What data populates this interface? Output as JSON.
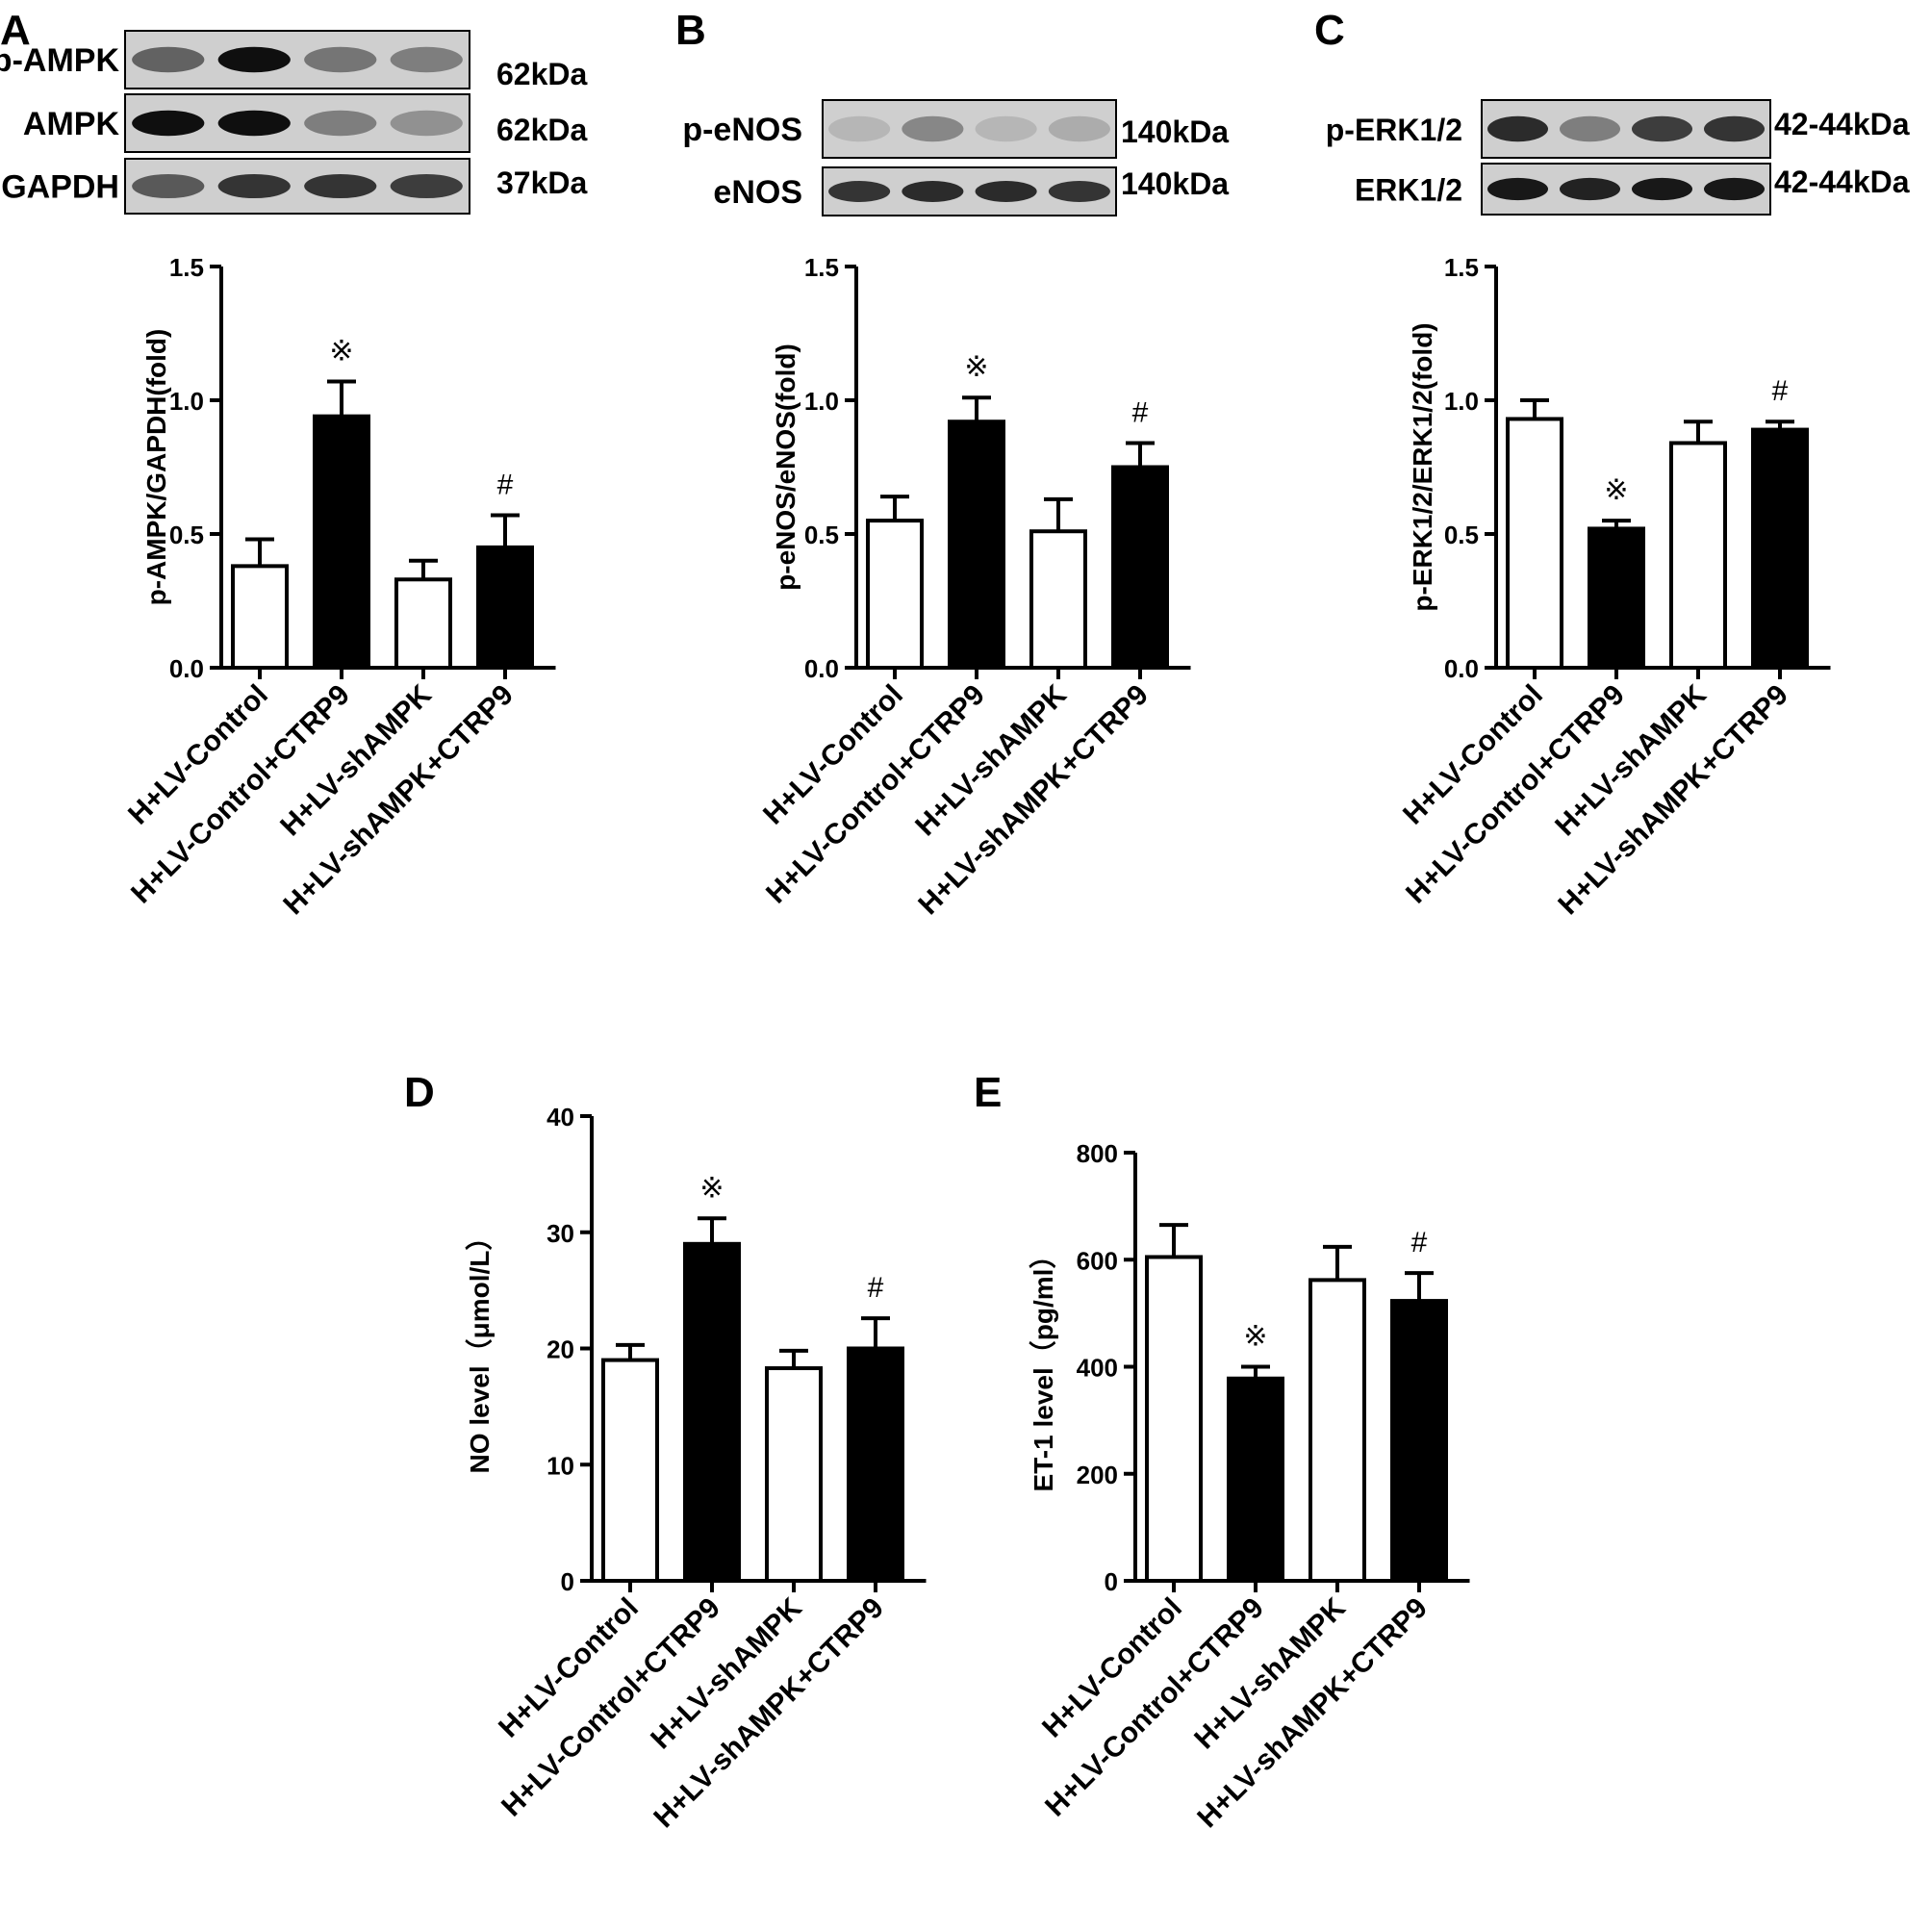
{
  "groups": [
    "H+LV-Control",
    "H+LV-Control+CTRP9",
    "H+LV-shAMPK",
    "H+LV-shAMPK+CTRP9"
  ],
  "bar_fills": [
    "#ffffff",
    "#000000",
    "#ffffff",
    "#000000"
  ],
  "blots": [
    {
      "panel": "A",
      "rows": [
        {
          "protein": "p-AMPK",
          "size": "62kDa",
          "intensity": [
            0.55,
            1.0,
            0.45,
            0.4
          ]
        },
        {
          "protein": "AMPK",
          "size": "62kDa",
          "intensity": [
            1.0,
            1.0,
            0.4,
            0.3
          ]
        },
        {
          "protein": "GAPDH",
          "size": "37kDa",
          "intensity": [
            0.6,
            0.8,
            0.8,
            0.75
          ]
        }
      ]
    },
    {
      "panel": "B",
      "rows": [
        {
          "protein": "p-eNOS",
          "size": "140kDa",
          "intensity": [
            0.1,
            0.35,
            0.1,
            0.15
          ]
        },
        {
          "protein": "eNOS",
          "size": "140kDa",
          "intensity": [
            0.8,
            0.85,
            0.85,
            0.8
          ]
        }
      ]
    },
    {
      "panel": "C",
      "rows": [
        {
          "protein": "p-ERK1/2",
          "size": "42-44kDa",
          "intensity": [
            0.85,
            0.4,
            0.75,
            0.8
          ]
        },
        {
          "protein": "ERK1/2",
          "size": "42-44kDa",
          "intensity": [
            0.95,
            0.9,
            0.95,
            0.95
          ]
        }
      ]
    }
  ],
  "chart_data": [
    {
      "panel": "A",
      "type": "bar",
      "categories": [
        "H+LV-Control",
        "H+LV-Control+CTRP9",
        "H+LV-shAMPK",
        "H+LV-shAMPK+CTRP9"
      ],
      "values": [
        0.38,
        0.94,
        0.33,
        0.45
      ],
      "errors": [
        0.1,
        0.13,
        0.07,
        0.12
      ],
      "annotations": [
        "",
        "※",
        "",
        "#"
      ],
      "ylabel": "p-AMPK/GAPDH(fold)",
      "ylim": [
        0,
        1.5
      ],
      "yticks": [
        "0.0",
        "0.5",
        "1.0",
        "1.5"
      ]
    },
    {
      "panel": "B",
      "type": "bar",
      "categories": [
        "H+LV-Control",
        "H+LV-Control+CTRP9",
        "H+LV-shAMPK",
        "H+LV-shAMPK+CTRP9"
      ],
      "values": [
        0.55,
        0.92,
        0.51,
        0.75
      ],
      "errors": [
        0.09,
        0.09,
        0.12,
        0.09
      ],
      "annotations": [
        "",
        "※",
        "",
        "#"
      ],
      "ylabel": "p-eNOS/eNOS(fold)",
      "ylim": [
        0,
        1.5
      ],
      "yticks": [
        "0.0",
        "0.5",
        "1.0",
        "1.5"
      ]
    },
    {
      "panel": "C",
      "type": "bar",
      "categories": [
        "H+LV-Control",
        "H+LV-Control+CTRP9",
        "H+LV-shAMPK",
        "H+LV-shAMPK+CTRP9"
      ],
      "values": [
        0.93,
        0.52,
        0.84,
        0.89
      ],
      "errors": [
        0.07,
        0.03,
        0.08,
        0.03
      ],
      "annotations": [
        "",
        "※",
        "",
        "#"
      ],
      "ylabel": "p-ERK1/2/ERK1/2(fold)",
      "ylim": [
        0,
        1.5
      ],
      "yticks": [
        "0.0",
        "0.5",
        "1.0",
        "1.5"
      ]
    },
    {
      "panel": "D",
      "type": "bar",
      "categories": [
        "H+LV-Control",
        "H+LV-Control+CTRP9",
        "H+LV-shAMPK",
        "H+LV-shAMPK+CTRP9"
      ],
      "values": [
        19.0,
        29.0,
        18.3,
        20.0
      ],
      "errors": [
        1.3,
        2.2,
        1.5,
        2.6
      ],
      "annotations": [
        "",
        "※",
        "",
        "#"
      ],
      "ylabel": "NO level（μmol/L）",
      "ylim": [
        0,
        40
      ],
      "yticks": [
        "0",
        "10",
        "20",
        "30",
        "40"
      ]
    },
    {
      "panel": "E",
      "type": "bar",
      "categories": [
        "H+LV-Control",
        "H+LV-Control+CTRP9",
        "H+LV-shAMPK",
        "H+LV-shAMPK+CTRP9"
      ],
      "values": [
        605,
        378,
        562,
        523
      ],
      "errors": [
        60,
        22,
        62,
        52
      ],
      "annotations": [
        "",
        "※",
        "",
        "#"
      ],
      "ylabel": "ET-1 level（pg/ml）",
      "ylim": [
        0,
        800
      ],
      "yticks": [
        "0",
        "200",
        "400",
        "600",
        "800"
      ]
    }
  ]
}
